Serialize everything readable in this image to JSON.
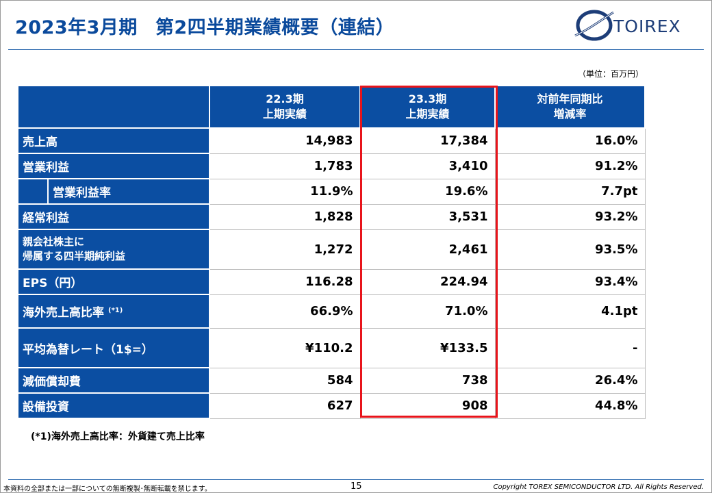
{
  "header": {
    "title_period": "2023年3月期",
    "title_main": "第2四半期業績概要（連結）",
    "logo_text": "TOIREX"
  },
  "unit_note": "（単位：百万円）",
  "table": {
    "columns": [
      {
        "line1": "22.3期",
        "line2": "上期実績"
      },
      {
        "line1": "23.3期",
        "line2": "上期実績"
      },
      {
        "line1": "対前年同期比",
        "line2": "増減率"
      }
    ],
    "rows": [
      {
        "label": "売上高",
        "values": [
          "14,983",
          "17,384",
          "16.0%"
        ]
      },
      {
        "label": "営業利益",
        "values": [
          "1,783",
          "3,410",
          "91.2%"
        ]
      },
      {
        "label": "営業利益率",
        "values": [
          "11.9%",
          "19.6%",
          "7.7pt"
        ]
      },
      {
        "label": "経常利益",
        "values": [
          "1,828",
          "3,531",
          "93.2%"
        ]
      },
      {
        "label_line1": "親会社株主に",
        "label_line2": "帰属する四半期純利益",
        "values": [
          "1,272",
          "2,461",
          "93.5%"
        ]
      },
      {
        "label": "EPS（円）",
        "values": [
          "116.28",
          "224.94",
          "93.4%"
        ]
      },
      {
        "label": "海外売上高比率",
        "sup": "(*1)",
        "values": [
          "66.9%",
          "71.0%",
          "4.1pt"
        ]
      },
      {
        "label": "平均為替レート（1$=）",
        "values": [
          "¥110.2",
          "¥133.5",
          "-"
        ]
      },
      {
        "label": "減価償却費",
        "values": [
          "584",
          "738",
          "26.4%"
        ]
      },
      {
        "label": "設備投資",
        "values": [
          "627",
          "908",
          "44.8%"
        ]
      }
    ]
  },
  "colors": {
    "header_blue": "#0b4ea2",
    "title_blue": "#0b4a9c",
    "highlight_red": "#e8141b"
  },
  "footnote": "(*1)海外売上高比率：外貨建て売上比率",
  "footer": {
    "left": "本資料の全部または一部についての無断複製･無断転載を禁じます。",
    "page": "15",
    "right": "Copyright TOREX SEMICONDUCTOR LTD.  All Rights Reserved."
  }
}
